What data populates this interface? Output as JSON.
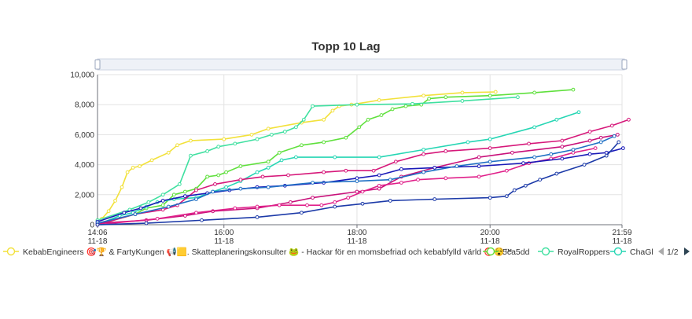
{
  "chart_data": {
    "type": "line",
    "title": "Topp 10 Lag",
    "xlabel": "",
    "ylabel": "",
    "x_ticks": [
      {
        "time": "14:06",
        "date": "11-18",
        "minutes": 846
      },
      {
        "time": "16:00",
        "date": "11-18",
        "minutes": 960
      },
      {
        "time": "18:00",
        "date": "11-18",
        "minutes": 1080
      },
      {
        "time": "20:00",
        "date": "11-18",
        "minutes": 1200
      },
      {
        "time": "21:59",
        "date": "11-18",
        "minutes": 1319
      }
    ],
    "xlim": [
      846,
      1319
    ],
    "ylim": [
      0,
      10000
    ],
    "y_ticks": [
      "0",
      "2,000",
      "4,000",
      "6,000",
      "8,000",
      "10,000"
    ],
    "y_tick_values": [
      0,
      2000,
      4000,
      6000,
      8000,
      10000
    ],
    "grid": true,
    "legend_position": "bottom",
    "legend_page": "1/2",
    "legend": [
      {
        "label": "KebabEngineers 🎯🏆 & FartyKungen 📢🟨. Skatteplaneringskonsulter 🐸 - Hackar för en momsbefriad och kebabfylld värld 🎯😵™",
        "color": "#f2e13a"
      },
      {
        "label": "5ca5dd",
        "color": "#5fe03c"
      },
      {
        "label": "RoyalRoppers",
        "color": "#3fe0a0"
      },
      {
        "label": "ChaGl",
        "color": "#26d6b4"
      }
    ],
    "series": [
      {
        "color": "#f2e13a",
        "points": [
          [
            846,
            300
          ],
          [
            850,
            400
          ],
          [
            856,
            900
          ],
          [
            862,
            1600
          ],
          [
            868,
            2500
          ],
          [
            873,
            3500
          ],
          [
            878,
            3800
          ],
          [
            884,
            3900
          ],
          [
            895,
            4300
          ],
          [
            910,
            4800
          ],
          [
            918,
            5300
          ],
          [
            930,
            5600
          ],
          [
            960,
            5700
          ],
          [
            985,
            6000
          ],
          [
            1000,
            6400
          ],
          [
            1030,
            6800
          ],
          [
            1050,
            7000
          ],
          [
            1058,
            7600
          ],
          [
            1064,
            7900
          ],
          [
            1075,
            8000
          ],
          [
            1100,
            8300
          ],
          [
            1140,
            8600
          ],
          [
            1175,
            8800
          ],
          [
            1205,
            8850
          ]
        ]
      },
      {
        "color": "#5fe03c",
        "points": [
          [
            846,
            0
          ],
          [
            880,
            700
          ],
          [
            890,
            1100
          ],
          [
            905,
            1300
          ],
          [
            915,
            2000
          ],
          [
            925,
            2200
          ],
          [
            935,
            2400
          ],
          [
            945,
            3200
          ],
          [
            955,
            3300
          ],
          [
            962,
            3500
          ],
          [
            975,
            3900
          ],
          [
            1000,
            4200
          ],
          [
            1010,
            4800
          ],
          [
            1030,
            5300
          ],
          [
            1050,
            5500
          ],
          [
            1070,
            5800
          ],
          [
            1082,
            6500
          ],
          [
            1090,
            7000
          ],
          [
            1102,
            7300
          ],
          [
            1112,
            7700
          ],
          [
            1124,
            7900
          ],
          [
            1138,
            8000
          ],
          [
            1145,
            8400
          ],
          [
            1160,
            8500
          ],
          [
            1200,
            8600
          ],
          [
            1240,
            8800
          ],
          [
            1275,
            9000
          ]
        ]
      },
      {
        "color": "#3fe0a0",
        "points": [
          [
            846,
            300
          ],
          [
            875,
            1000
          ],
          [
            892,
            1500
          ],
          [
            905,
            2000
          ],
          [
            920,
            2700
          ],
          [
            930,
            4600
          ],
          [
            945,
            4900
          ],
          [
            955,
            5200
          ],
          [
            970,
            5400
          ],
          [
            990,
            5700
          ],
          [
            1003,
            6000
          ],
          [
            1015,
            6200
          ],
          [
            1025,
            6500
          ],
          [
            1032,
            7000
          ],
          [
            1040,
            7900
          ],
          [
            1080,
            8000
          ],
          [
            1130,
            8050
          ],
          [
            1175,
            8250
          ],
          [
            1225,
            8500
          ]
        ]
      },
      {
        "color": "#26d6b4",
        "points": [
          [
            846,
            0
          ],
          [
            866,
            600
          ],
          [
            878,
            800
          ],
          [
            890,
            1200
          ],
          [
            900,
            1500
          ],
          [
            915,
            1700
          ],
          [
            935,
            1800
          ],
          [
            950,
            2200
          ],
          [
            962,
            2500
          ],
          [
            975,
            2900
          ],
          [
            990,
            3500
          ],
          [
            1000,
            3800
          ],
          [
            1012,
            4300
          ],
          [
            1025,
            4500
          ],
          [
            1060,
            4500
          ],
          [
            1100,
            4500
          ],
          [
            1140,
            5000
          ],
          [
            1180,
            5500
          ],
          [
            1200,
            5700
          ],
          [
            1240,
            6500
          ],
          [
            1260,
            7000
          ],
          [
            1280,
            7500
          ]
        ]
      },
      {
        "color": "#d6187a",
        "points": [
          [
            846,
            0
          ],
          [
            880,
            700
          ],
          [
            905,
            1000
          ],
          [
            918,
            1300
          ],
          [
            935,
            2300
          ],
          [
            952,
            2700
          ],
          [
            975,
            3000
          ],
          [
            995,
            3200
          ],
          [
            1018,
            3300
          ],
          [
            1050,
            3500
          ],
          [
            1070,
            3600
          ],
          [
            1095,
            3600
          ],
          [
            1115,
            4200
          ],
          [
            1140,
            4700
          ],
          [
            1160,
            4900
          ],
          [
            1200,
            5100
          ],
          [
            1235,
            5400
          ],
          [
            1265,
            5600
          ],
          [
            1290,
            6200
          ],
          [
            1310,
            6600
          ],
          [
            1325,
            7000
          ]
        ]
      },
      {
        "color": "#c8107a",
        "points": [
          [
            846,
            100
          ],
          [
            890,
            300
          ],
          [
            925,
            600
          ],
          [
            950,
            900
          ],
          [
            990,
            1100
          ],
          [
            1020,
            1500
          ],
          [
            1040,
            1800
          ],
          [
            1080,
            2200
          ],
          [
            1100,
            2400
          ],
          [
            1120,
            3200
          ],
          [
            1150,
            3800
          ],
          [
            1190,
            4500
          ],
          [
            1220,
            4800
          ],
          [
            1265,
            5200
          ],
          [
            1290,
            5600
          ],
          [
            1300,
            5800
          ],
          [
            1315,
            6000
          ]
        ]
      },
      {
        "color": "#e0208a",
        "points": [
          [
            846,
            0
          ],
          [
            900,
            400
          ],
          [
            935,
            800
          ],
          [
            970,
            1100
          ],
          [
            990,
            1200
          ],
          [
            1010,
            1300
          ],
          [
            1035,
            1300
          ],
          [
            1048,
            1300
          ],
          [
            1060,
            1500
          ],
          [
            1072,
            1800
          ],
          [
            1085,
            2200
          ],
          [
            1100,
            2600
          ],
          [
            1120,
            2800
          ],
          [
            1135,
            3000
          ],
          [
            1160,
            3100
          ],
          [
            1190,
            3200
          ],
          [
            1215,
            3600
          ],
          [
            1235,
            4100
          ],
          [
            1255,
            4400
          ],
          [
            1275,
            4800
          ],
          [
            1295,
            5100
          ]
        ]
      },
      {
        "color": "#1a1ab8",
        "points": [
          [
            846,
            200
          ],
          [
            870,
            800
          ],
          [
            885,
            1100
          ],
          [
            905,
            1600
          ],
          [
            925,
            1900
          ],
          [
            945,
            2100
          ],
          [
            965,
            2300
          ],
          [
            990,
            2500
          ],
          [
            1015,
            2600
          ],
          [
            1050,
            2800
          ],
          [
            1080,
            3100
          ],
          [
            1100,
            3300
          ],
          [
            1120,
            3700
          ],
          [
            1150,
            3800
          ],
          [
            1190,
            3900
          ],
          [
            1230,
            4100
          ],
          [
            1265,
            4400
          ],
          [
            1290,
            4700
          ],
          [
            1305,
            4800
          ],
          [
            1320,
            5100
          ]
        ]
      },
      {
        "color": "#1f6fc4",
        "points": [
          [
            846,
            100
          ],
          [
            880,
            700
          ],
          [
            910,
            1200
          ],
          [
            935,
            1700
          ],
          [
            950,
            2200
          ],
          [
            975,
            2400
          ],
          [
            1000,
            2500
          ],
          [
            1040,
            2800
          ],
          [
            1080,
            2900
          ],
          [
            1110,
            3000
          ],
          [
            1140,
            3500
          ],
          [
            1170,
            3900
          ],
          [
            1200,
            4200
          ],
          [
            1240,
            4500
          ],
          [
            1255,
            4700
          ],
          [
            1275,
            5000
          ],
          [
            1300,
            5500
          ],
          [
            1312,
            5900
          ]
        ]
      },
      {
        "color": "#1c3aa8",
        "points": [
          [
            846,
            0
          ],
          [
            890,
            100
          ],
          [
            940,
            300
          ],
          [
            990,
            500
          ],
          [
            1030,
            800
          ],
          [
            1060,
            1200
          ],
          [
            1085,
            1400
          ],
          [
            1110,
            1600
          ],
          [
            1150,
            1700
          ],
          [
            1200,
            1800
          ],
          [
            1215,
            1900
          ],
          [
            1222,
            2300
          ],
          [
            1232,
            2600
          ],
          [
            1245,
            3000
          ],
          [
            1260,
            3400
          ],
          [
            1285,
            4000
          ],
          [
            1305,
            4600
          ],
          [
            1316,
            5500
          ]
        ]
      }
    ]
  }
}
